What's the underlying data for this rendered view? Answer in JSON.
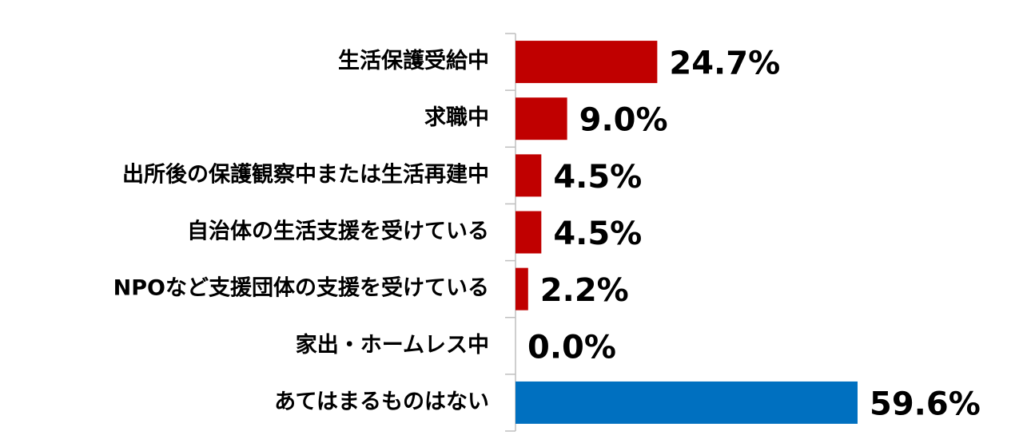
{
  "chart_data": {
    "type": "barh",
    "categories": [
      "生活保護受給中",
      "求職中",
      "出所後の保護観察中または生活再建中",
      "自治体の生活支援を受けている",
      "NPOなど支援団体の支援を受けている",
      "家出・ホームレス中",
      "あてはまるものはない"
    ],
    "values": [
      24.7,
      9.0,
      4.5,
      4.5,
      2.2,
      0.0,
      59.6
    ],
    "value_labels": [
      "24.7%",
      "9.0%",
      "4.5%",
      "4.5%",
      "2.2%",
      "0.0%",
      "59.6%"
    ],
    "colors": [
      "#c00000",
      "#c00000",
      "#c00000",
      "#c00000",
      "#c00000",
      "#c00000",
      "#0070c0"
    ]
  }
}
